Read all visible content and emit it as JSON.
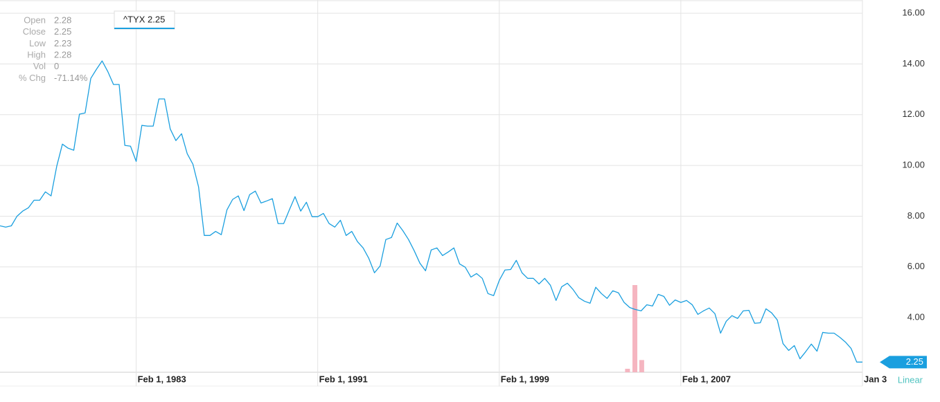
{
  "chart_data": {
    "type": "line",
    "x": [
      0,
      1,
      2,
      3,
      4,
      5,
      6,
      7,
      8,
      9,
      10,
      11,
      12,
      13,
      14,
      15,
      16,
      17,
      18,
      19,
      20,
      21,
      22,
      23,
      24,
      25,
      26,
      27,
      28,
      29,
      30,
      31,
      32,
      33,
      34,
      35,
      36,
      37,
      38,
      39,
      40,
      41,
      42,
      43,
      44,
      45,
      46,
      47,
      48,
      49,
      50,
      51,
      52,
      53,
      54,
      55,
      56,
      57,
      58,
      59,
      60,
      61,
      62,
      63,
      64,
      65,
      66,
      67,
      68,
      69,
      70,
      71,
      72,
      73,
      74,
      75,
      76,
      77,
      78,
      79,
      80,
      81,
      82,
      83,
      84,
      85,
      86,
      87,
      88,
      89,
      90,
      91,
      92,
      93,
      94,
      95,
      96,
      97,
      98,
      99,
      100,
      101,
      102,
      103,
      104,
      105,
      106,
      107,
      108,
      109,
      110,
      111,
      112,
      113,
      114,
      115,
      116,
      117,
      118,
      119,
      120,
      121,
      122,
      123,
      124,
      125,
      126,
      127,
      128,
      129,
      130,
      131,
      132,
      133,
      134,
      135,
      136,
      137,
      138,
      139,
      140,
      141,
      142,
      143,
      144,
      145,
      146,
      147,
      148,
      149,
      150,
      151,
      152
    ],
    "series": [
      {
        "name": "^TYX",
        "color": "#1a9fdf",
        "values": [
          7.62,
          7.57,
          7.62,
          8.0,
          8.2,
          8.33,
          8.63,
          8.63,
          8.96,
          8.8,
          9.97,
          10.84,
          10.68,
          10.6,
          12.02,
          12.07,
          13.43,
          13.79,
          14.12,
          13.7,
          13.19,
          13.19,
          10.79,
          10.76,
          10.16,
          11.58,
          11.55,
          11.55,
          12.62,
          12.62,
          11.44,
          10.98,
          11.25,
          10.46,
          10.05,
          9.15,
          7.24,
          7.24,
          7.4,
          7.27,
          8.25,
          8.66,
          8.8,
          8.22,
          8.85,
          8.99,
          8.52,
          8.6,
          8.69,
          7.71,
          7.71,
          8.25,
          8.77,
          8.2,
          8.55,
          7.98,
          7.98,
          8.11,
          7.71,
          7.57,
          7.84,
          7.24,
          7.4,
          7.0,
          6.75,
          6.34,
          5.77,
          6.04,
          7.08,
          7.16,
          7.73,
          7.43,
          7.08,
          6.64,
          6.15,
          5.85,
          6.67,
          6.75,
          6.45,
          6.59,
          6.75,
          6.12,
          5.99,
          5.6,
          5.74,
          5.55,
          4.95,
          4.87,
          5.47,
          5.88,
          5.9,
          6.26,
          5.77,
          5.55,
          5.55,
          5.33,
          5.55,
          5.28,
          4.68,
          5.22,
          5.36,
          5.11,
          4.79,
          4.65,
          4.57,
          5.2,
          4.95,
          4.76,
          5.06,
          4.98,
          4.6,
          4.4,
          4.32,
          4.27,
          4.51,
          4.46,
          4.92,
          4.84,
          4.49,
          4.7,
          4.6,
          4.68,
          4.51,
          4.13,
          4.27,
          4.38,
          4.16,
          3.39,
          3.86,
          4.08,
          3.97,
          4.27,
          4.29,
          3.78,
          3.8,
          4.35,
          4.19,
          3.91,
          2.98,
          2.71,
          2.9,
          2.38,
          2.66,
          2.96,
          2.68,
          3.42,
          3.39,
          3.39,
          3.23,
          3.04,
          2.79,
          2.25,
          2.25
        ]
      }
    ],
    "xlim": [
      0,
      152
    ],
    "xticks": [
      {
        "value": 24,
        "label": "Feb 1, 1983"
      },
      {
        "value": 56,
        "label": "Feb 1, 1991"
      },
      {
        "value": 88,
        "label": "Feb 1, 1999"
      },
      {
        "value": 120,
        "label": "Feb 1, 2007"
      },
      {
        "value": 152,
        "label": "Jan 3"
      }
    ],
    "ylim": [
      1.85,
      16.52
    ],
    "yticks": [
      {
        "value": 4,
        "label": "4.00"
      },
      {
        "value": 6,
        "label": "6.00"
      },
      {
        "value": 8,
        "label": "8.00"
      },
      {
        "value": 10,
        "label": "10.00"
      },
      {
        "value": 12,
        "label": "12.00"
      },
      {
        "value": 14,
        "label": "14.00"
      },
      {
        "value": 16,
        "label": "16.00"
      }
    ],
    "grid": true,
    "scale": "Linear",
    "volume": {
      "color": "#f5b5c0",
      "x": [
        110.6,
        111.9,
        113.1
      ],
      "values": [
        0.04,
        1,
        0.14
      ],
      "ylim": [
        0,
        4.27
      ]
    },
    "tooltip": "^TYX 2.25",
    "quote": [
      {
        "label": "Open",
        "value": "2.28"
      },
      {
        "label": "Close",
        "value": "2.25"
      },
      {
        "label": "Low",
        "value": "2.23"
      },
      {
        "label": "High",
        "value": "2.28"
      },
      {
        "label": "Vol",
        "value": "0"
      },
      {
        "label": "% Chg",
        "value": "-71.14%"
      }
    ]
  }
}
